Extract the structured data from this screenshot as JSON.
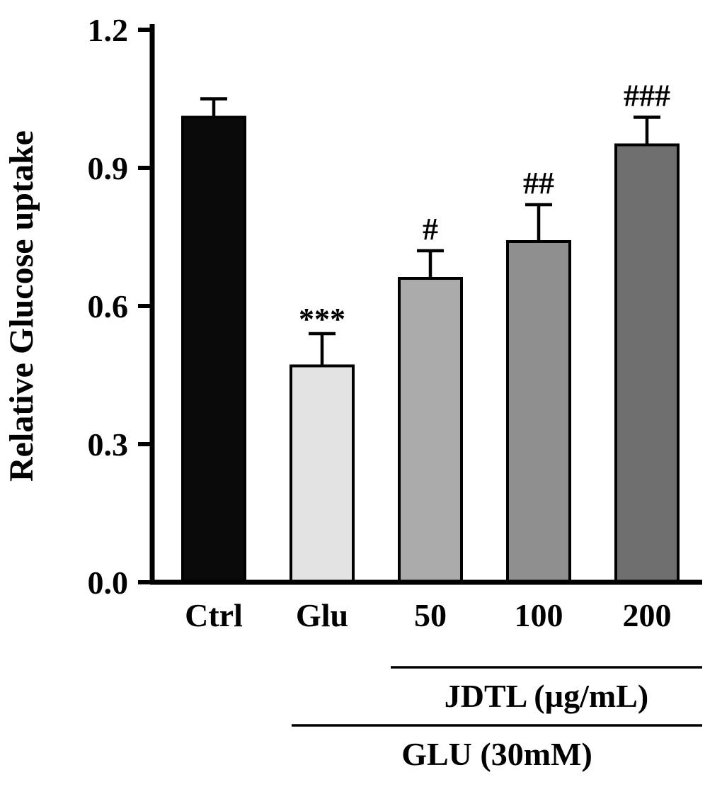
{
  "figure": {
    "background": "#ffffff",
    "axis_color": "#000000"
  },
  "chart_data": {
    "type": "bar",
    "title": "",
    "xlabel": "",
    "ylabel": "Relative Glucose uptake",
    "categories": [
      "Ctrl",
      "Glu",
      "50",
      "100",
      "200"
    ],
    "values": [
      1.01,
      0.47,
      0.66,
      0.74,
      0.95
    ],
    "errors": [
      0.04,
      0.07,
      0.06,
      0.08,
      0.06
    ],
    "significance": [
      "",
      "***",
      "#",
      "##",
      "###"
    ],
    "bar_colors": [
      "#0a0a0a",
      "#e3e3e3",
      "#ababab",
      "#8f8f8f",
      "#6f6f6f"
    ],
    "bar_border_color": "#000000",
    "error_bar_color": "#000000",
    "ylim": [
      0,
      1.2
    ],
    "yticks": [
      "0.0",
      "0.3",
      "0.6",
      "0.9",
      "1.2"
    ],
    "grid": false,
    "legend": null,
    "group_annotations": [
      {
        "label": "JDTL (µg/mL)",
        "start_category": "50",
        "end_category": "200"
      },
      {
        "label": "GLU (30mM)",
        "start_category": "Glu",
        "end_category": "200"
      }
    ]
  }
}
